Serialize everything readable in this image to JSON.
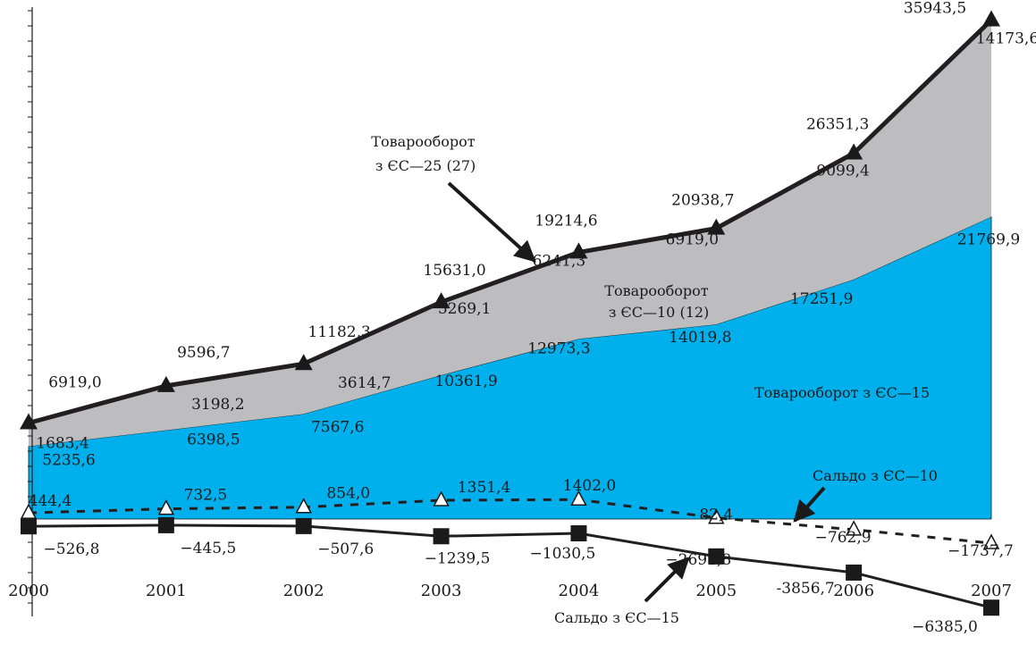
{
  "chart_data": {
    "type": "area",
    "title": "",
    "xlabel": "",
    "ylabel": "",
    "categories": [
      "2000",
      "2001",
      "2002",
      "2003",
      "2004",
      "2005",
      "2006",
      "2007"
    ],
    "ylim": [
      -7000,
      37000
    ],
    "grid": false,
    "series": [
      {
        "name": "Товарооборот з ЄС—15",
        "kind": "area",
        "color": "#00b0ec",
        "values": [
          5235.6,
          6398.5,
          7567.6,
          10361.9,
          12973.3,
          14019.8,
          17251.9,
          21769.9
        ],
        "labels": [
          "5235,6",
          "6398,5",
          "7567,6",
          "10361,9",
          "12973,3",
          "14019,8",
          "17251,9",
          "21769,9"
        ]
      },
      {
        "name": "Товарооборот з ЄС—10 (12)",
        "kind": "stacked-area",
        "color": "#bdbdbf",
        "values": [
          1683.4,
          3198.2,
          3614.7,
          5269.1,
          6241.3,
          6919.0,
          9099.4,
          14173.6
        ],
        "labels": [
          "1683,4",
          "3198,2",
          "3614,7",
          "5269,1",
          "6241,3",
          "6919,0",
          "9099,4",
          "14173,6"
        ]
      },
      {
        "name": "Товарооборот з ЄС—25 (27)",
        "kind": "line",
        "color": "#231f20",
        "marker": "triangle-filled",
        "values": [
          6919.0,
          9596.7,
          11182.3,
          15631.0,
          19214.6,
          20938.7,
          26351.3,
          35943.5
        ],
        "labels": [
          "6919,0",
          "9596,7",
          "11182,3",
          "15631,0",
          "19214,6",
          "20938,7",
          "26351,3",
          "35943,5"
        ]
      },
      {
        "name": "Сальдо з ЄС—10",
        "kind": "line-dashed",
        "color": "#231f20",
        "marker": "triangle-open",
        "values": [
          444.4,
          732.5,
          854.0,
          1351.4,
          1402.0,
          82.4,
          -762.9,
          -1737.7
        ],
        "labels": [
          "444,4",
          "732,5",
          "854,0",
          "1351,4",
          "1402,0",
          "82,4",
          "−762,9",
          "−1737,7"
        ]
      },
      {
        "name": "Сальдо з ЄС—15",
        "kind": "line",
        "color": "#231f20",
        "marker": "square-filled",
        "values": [
          -526.8,
          -445.5,
          -507.6,
          -1239.5,
          -1030.5,
          -2691.8,
          -3856.7,
          -6385.0
        ],
        "labels": [
          "−526,8",
          "−445,5",
          "−507,6",
          "−1239,5",
          "−1030,5",
          "−2691,8",
          "-3856,7",
          "−6385,0"
        ]
      }
    ],
    "annotations": [
      {
        "id": "eu25",
        "lines": [
          "Товарооборот",
          "з ЄС—25 (27)"
        ],
        "arrow": true
      },
      {
        "id": "eu10",
        "lines": [
          "Товарооборот",
          "з ЄС—10 (12)"
        ],
        "arrow": false
      },
      {
        "id": "eu15",
        "lines": [
          "Товарооборот з ЄС—15"
        ],
        "arrow": false
      },
      {
        "id": "saldo10",
        "lines": [
          "Сальдо з ЄС—10"
        ],
        "arrow": true
      },
      {
        "id": "saldo15",
        "lines": [
          "Сальдо з ЄС—15"
        ],
        "arrow": true
      }
    ]
  }
}
